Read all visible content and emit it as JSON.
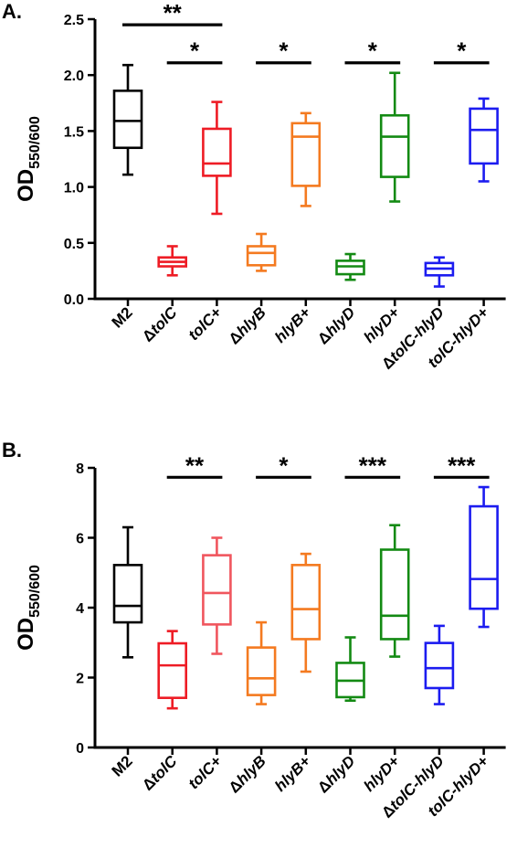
{
  "chart_data": [
    {
      "panel_label": "A.",
      "type": "box",
      "ylabel_main": "OD",
      "ylabel_sub": "550/600",
      "ylim": [
        0,
        2.5
      ],
      "yticks": [
        "0.0",
        "0.5",
        "1.0",
        "1.5",
        "2.0",
        "2.5"
      ],
      "ytick_values": [
        0,
        0.5,
        1.0,
        1.5,
        2.0,
        2.5
      ],
      "categories": [
        {
          "prefix": "",
          "name": "M2"
        },
        {
          "prefix": "Δ",
          "name": "tolC"
        },
        {
          "prefix": "",
          "name": "tolC+"
        },
        {
          "prefix": "Δ",
          "name": "hlyB"
        },
        {
          "prefix": "",
          "name": "hlyB+"
        },
        {
          "prefix": "Δ",
          "name": "hlyD"
        },
        {
          "prefix": "",
          "name": "hlyD+"
        },
        {
          "prefix": "Δ",
          "name": "tolC-hlyD"
        },
        {
          "prefix": "",
          "name": "tolC-hlyD+"
        }
      ],
      "colors": [
        "#000000",
        "#ee1c25",
        "#ee1c25",
        "#f47a20",
        "#f47a20",
        "#138a13",
        "#138a13",
        "#1c1cf0",
        "#1c1cf0"
      ],
      "boxes": [
        {
          "min": 1.11,
          "q1": 1.35,
          "median": 1.59,
          "q3": 1.86,
          "max": 2.09
        },
        {
          "min": 0.21,
          "q1": 0.29,
          "median": 0.33,
          "q3": 0.37,
          "max": 0.47
        },
        {
          "min": 0.76,
          "q1": 1.1,
          "median": 1.21,
          "q3": 1.52,
          "max": 1.76
        },
        {
          "min": 0.25,
          "q1": 0.3,
          "median": 0.41,
          "q3": 0.47,
          "max": 0.58
        },
        {
          "min": 0.83,
          "q1": 1.01,
          "median": 1.45,
          "q3": 1.57,
          "max": 1.66
        },
        {
          "min": 0.17,
          "q1": 0.22,
          "median": 0.29,
          "q3": 0.34,
          "max": 0.4
        },
        {
          "min": 0.87,
          "q1": 1.09,
          "median": 1.45,
          "q3": 1.64,
          "max": 2.02
        },
        {
          "min": 0.11,
          "q1": 0.21,
          "median": 0.27,
          "q3": 0.32,
          "max": 0.37
        },
        {
          "min": 1.05,
          "q1": 1.21,
          "median": 1.51,
          "q3": 1.7,
          "max": 1.79
        }
      ],
      "significance": [
        {
          "from": 0,
          "to": 2,
          "y": 2.45,
          "label": "**"
        },
        {
          "from": 1,
          "to": 2,
          "y": 2.11,
          "label": "*"
        },
        {
          "from": 3,
          "to": 4,
          "y": 2.11,
          "label": "*"
        },
        {
          "from": 5,
          "to": 6,
          "y": 2.11,
          "label": "*"
        },
        {
          "from": 7,
          "to": 8,
          "y": 2.11,
          "label": "*"
        }
      ]
    },
    {
      "panel_label": "B.",
      "type": "box",
      "ylabel_main": "OD",
      "ylabel_sub": "550/600",
      "ylim": [
        0,
        8
      ],
      "yticks": [
        "0",
        "2",
        "4",
        "6",
        "8"
      ],
      "ytick_values": [
        0,
        2,
        4,
        6,
        8
      ],
      "categories": [
        {
          "prefix": "",
          "name": "M2"
        },
        {
          "prefix": "Δ",
          "name": "tolC"
        },
        {
          "prefix": "",
          "name": "tolC+"
        },
        {
          "prefix": "Δ",
          "name": "hlyB"
        },
        {
          "prefix": "",
          "name": "hlyB+"
        },
        {
          "prefix": "Δ",
          "name": "hlyD"
        },
        {
          "prefix": "",
          "name": "hlyD+"
        },
        {
          "prefix": "Δ",
          "name": "tolC-hlyD"
        },
        {
          "prefix": "",
          "name": "tolC-hlyD+"
        }
      ],
      "colors": [
        "#000000",
        "#ee1c25",
        "#f0565e",
        "#f47a20",
        "#f47a20",
        "#138a13",
        "#138a13",
        "#1c1cf0",
        "#1c1cf0"
      ],
      "boxes": [
        {
          "min": 2.58,
          "q1": 3.58,
          "median": 4.05,
          "q3": 5.22,
          "max": 6.3
        },
        {
          "min": 1.12,
          "q1": 1.42,
          "median": 2.35,
          "q3": 2.98,
          "max": 3.33
        },
        {
          "min": 2.68,
          "q1": 3.52,
          "median": 4.42,
          "q3": 5.5,
          "max": 6.0
        },
        {
          "min": 1.24,
          "q1": 1.5,
          "median": 1.98,
          "q3": 2.86,
          "max": 3.58
        },
        {
          "min": 2.17,
          "q1": 3.1,
          "median": 3.96,
          "q3": 5.22,
          "max": 5.54
        },
        {
          "min": 1.34,
          "q1": 1.44,
          "median": 1.91,
          "q3": 2.42,
          "max": 3.15
        },
        {
          "min": 2.6,
          "q1": 3.1,
          "median": 3.77,
          "q3": 5.66,
          "max": 6.36
        },
        {
          "min": 1.24,
          "q1": 1.7,
          "median": 2.27,
          "q3": 2.99,
          "max": 3.48
        },
        {
          "min": 3.45,
          "q1": 3.97,
          "median": 4.82,
          "q3": 6.9,
          "max": 7.45
        }
      ],
      "significance": [
        {
          "from": 1,
          "to": 2,
          "y": 7.73,
          "label": "**"
        },
        {
          "from": 3,
          "to": 4,
          "y": 7.73,
          "label": "*"
        },
        {
          "from": 5,
          "to": 6,
          "y": 7.73,
          "label": "***"
        },
        {
          "from": 7,
          "to": 8,
          "y": 7.73,
          "label": "***"
        }
      ]
    }
  ]
}
